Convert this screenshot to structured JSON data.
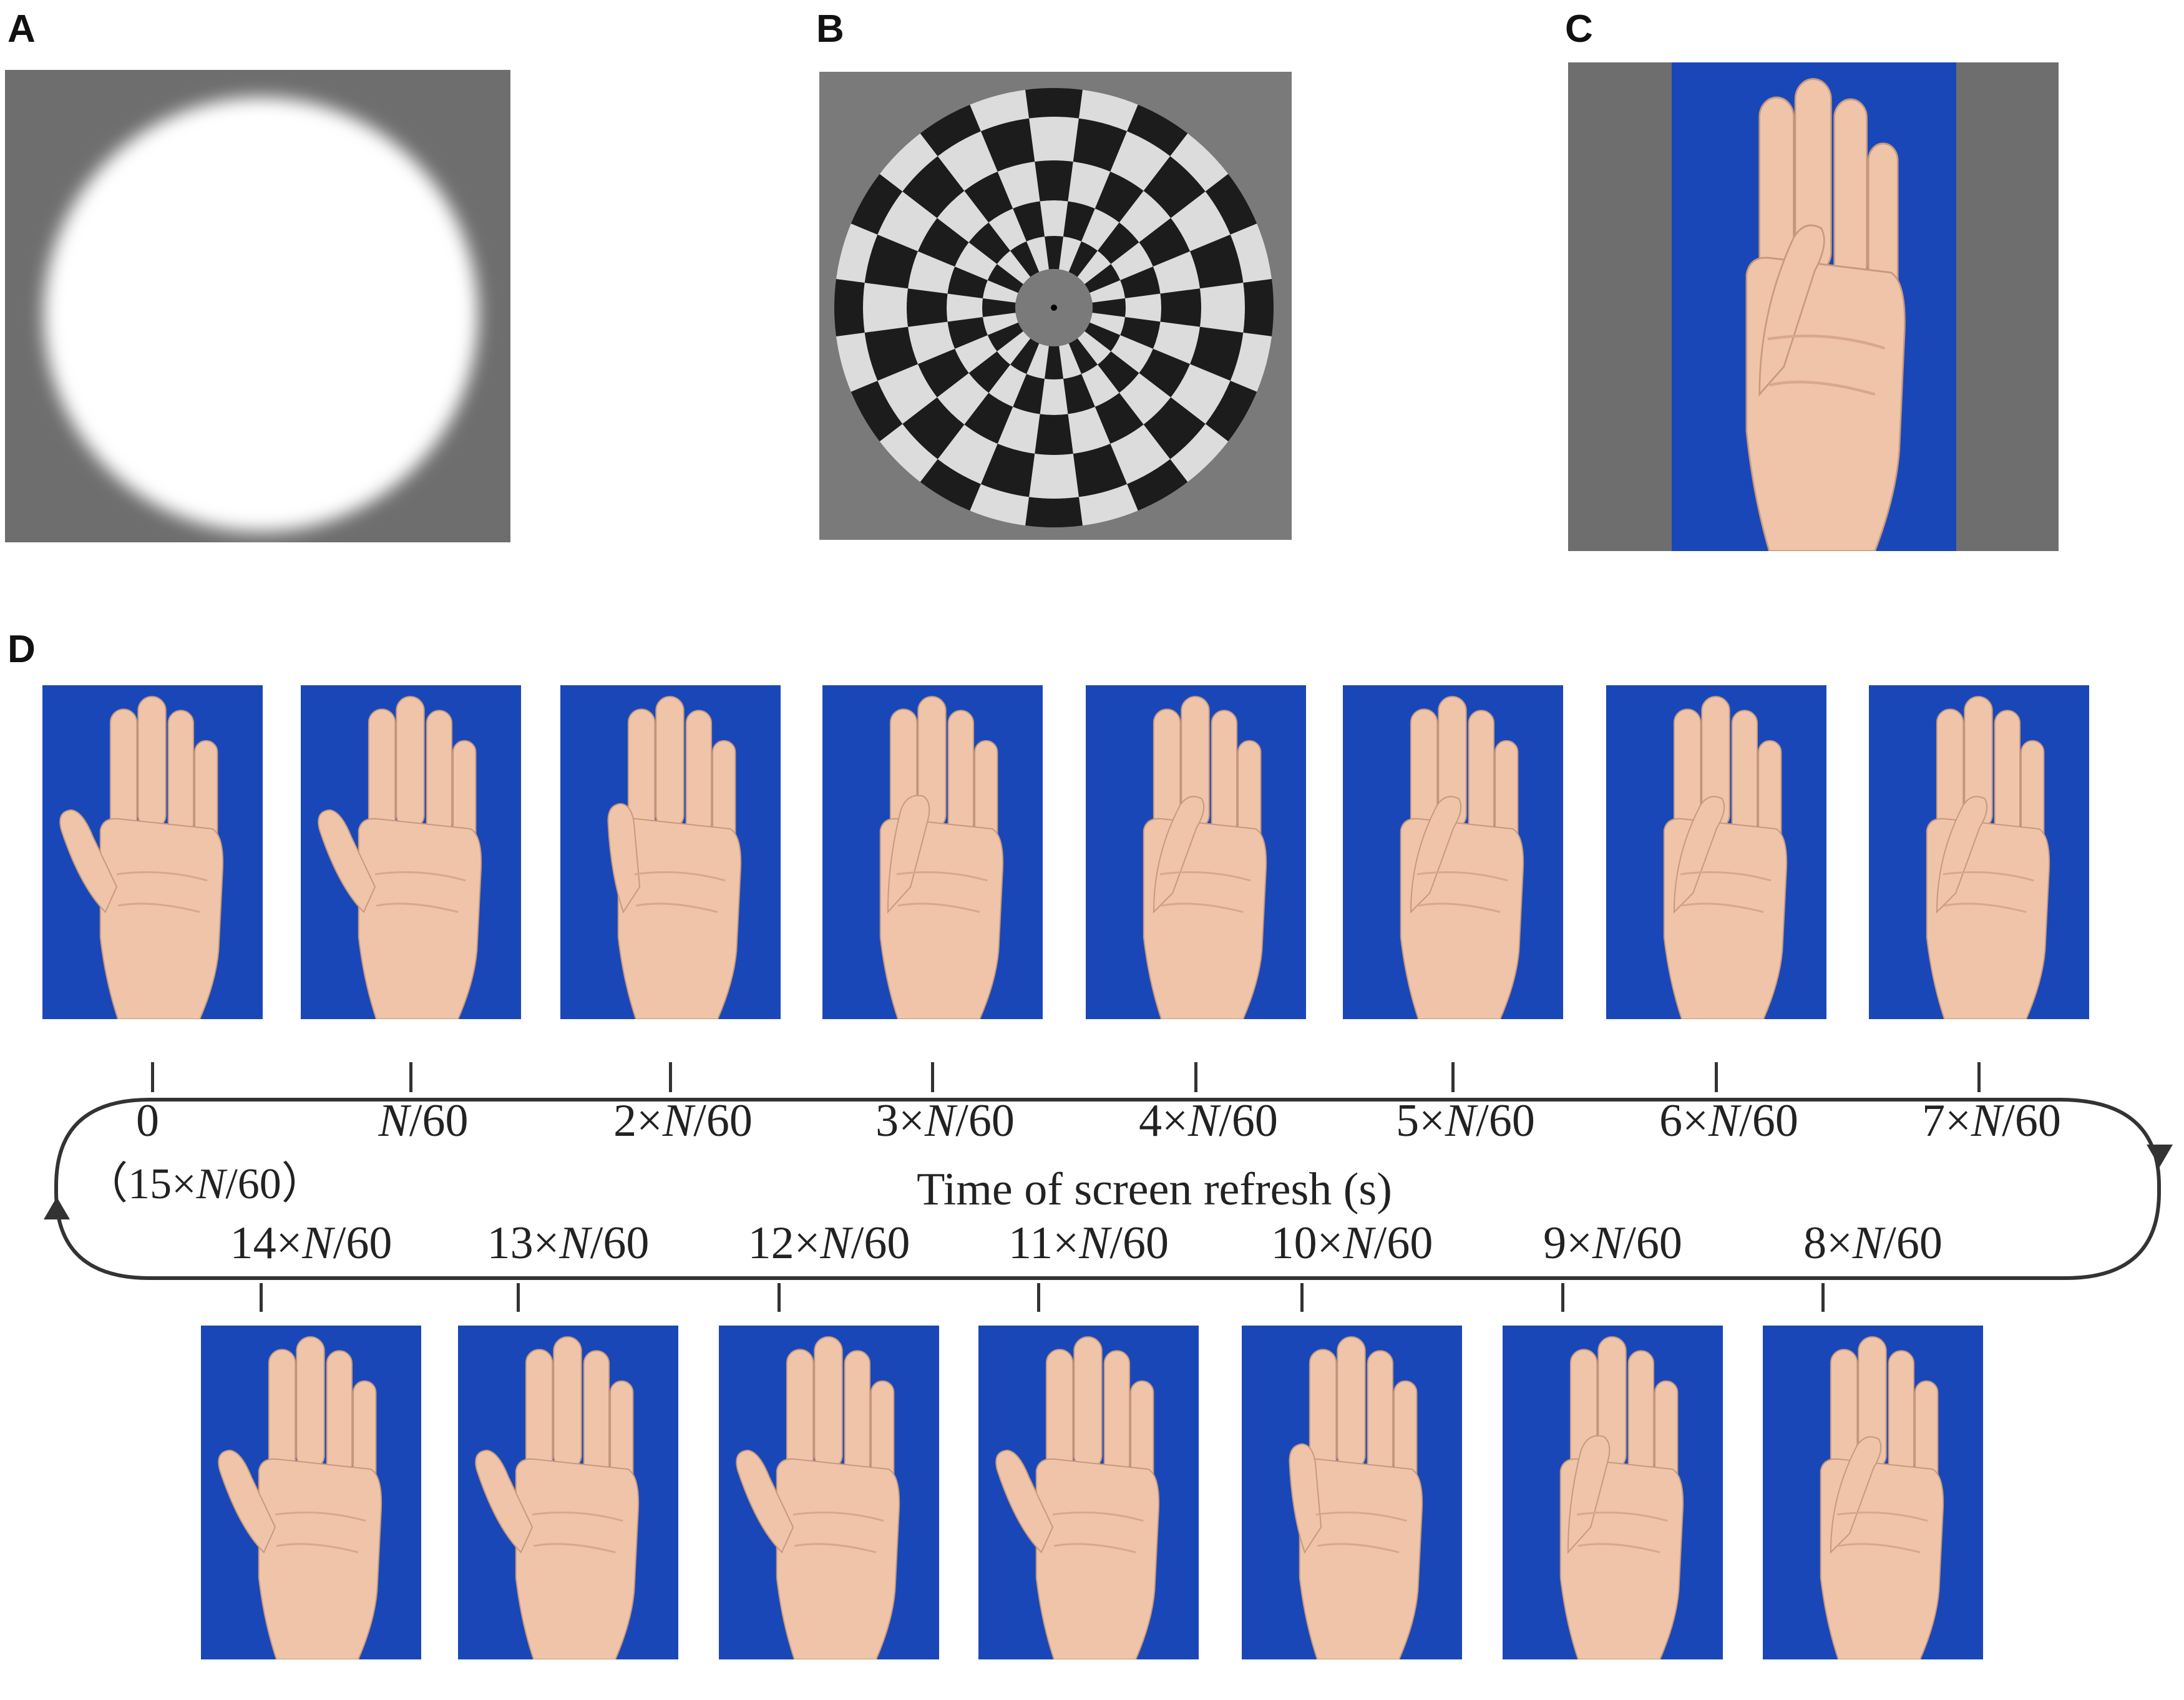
{
  "panels": {
    "a": {
      "label": "A"
    },
    "b": {
      "label": "B"
    },
    "c": {
      "label": "C"
    },
    "d": {
      "label": "D"
    }
  },
  "timeline": {
    "axis_title": "Time of screen refresh (s)",
    "top_row": [
      {
        "prefix": "0",
        "n": "",
        "suffix": "",
        "note": "（15×N/60）",
        "note_prefix": "（15×",
        "note_n": "N",
        "note_suffix": "/60）",
        "thumb": "open-palm"
      },
      {
        "prefix": "",
        "n": "N",
        "suffix": "/60",
        "thumb": "open-palm"
      },
      {
        "prefix": "2×",
        "n": "N",
        "suffix": "/60",
        "thumb": "thumb-lifting"
      },
      {
        "prefix": "3×",
        "n": "N",
        "suffix": "/60",
        "thumb": "thumb-over-palm"
      },
      {
        "prefix": "4×",
        "n": "N",
        "suffix": "/60",
        "thumb": "thumb-folded"
      },
      {
        "prefix": "5×",
        "n": "N",
        "suffix": "/60",
        "thumb": "thumb-folded"
      },
      {
        "prefix": "6×",
        "n": "N",
        "suffix": "/60",
        "thumb": "thumb-folded"
      },
      {
        "prefix": "7×",
        "n": "N",
        "suffix": "/60",
        "thumb": "thumb-folded"
      }
    ],
    "bottom_row": [
      {
        "prefix": "14×",
        "n": "N",
        "suffix": "/60",
        "thumb": "open-palm"
      },
      {
        "prefix": "13×",
        "n": "N",
        "suffix": "/60",
        "thumb": "open-palm"
      },
      {
        "prefix": "12×",
        "n": "N",
        "suffix": "/60",
        "thumb": "open-palm"
      },
      {
        "prefix": "11×",
        "n": "N",
        "suffix": "/60",
        "thumb": "open-palm"
      },
      {
        "prefix": "10×",
        "n": "N",
        "suffix": "/60",
        "thumb": "thumb-lifting"
      },
      {
        "prefix": "9×",
        "n": "N",
        "suffix": "/60",
        "thumb": "thumb-over-palm"
      },
      {
        "prefix": "8×",
        "n": "N",
        "suffix": "/60",
        "thumb": "thumb-folded"
      }
    ]
  },
  "colors": {
    "stim_gray": "#6e6e6e",
    "fabric_blue": "#1a47b8",
    "skin": "#efc4a8",
    "check_dark": "#1c1c1c",
    "check_light": "#dcdcdc",
    "line": "#333333"
  }
}
